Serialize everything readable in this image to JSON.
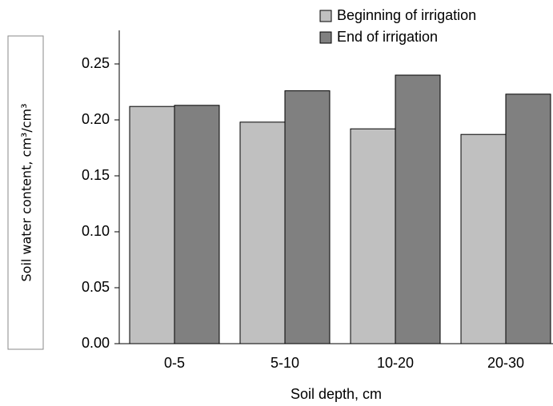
{
  "chart_data": {
    "type": "bar",
    "x_label": "Soil depth, cm",
    "y_label": "Soil water content, cm³/cm³",
    "categories": [
      "0-5",
      "5-10",
      "10-20",
      "20-30"
    ],
    "series": [
      {
        "name": "Beginning of irrigation",
        "color": "#c0c0c0",
        "values": [
          0.212,
          0.198,
          0.192,
          0.187
        ]
      },
      {
        "name": "End of irrigation",
        "color": "#808080",
        "values": [
          0.213,
          0.226,
          0.24,
          0.223
        ]
      }
    ],
    "ylim": [
      0,
      0.28
    ],
    "yticks": [
      {
        "value": 0,
        "label": "0.00"
      },
      0.05,
      {
        "value": 0.1,
        "label": "0.10"
      },
      0.15,
      {
        "value": 0.2,
        "label": "0.20"
      },
      0.25
    ],
    "grid": false,
    "legend": "top"
  }
}
